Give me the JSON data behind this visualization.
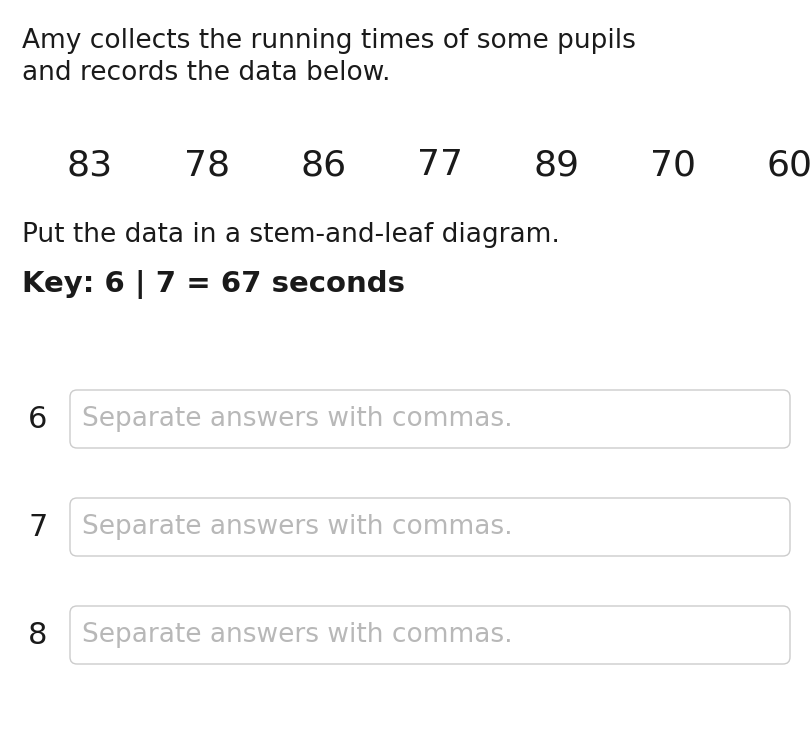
{
  "title_line1": "Amy collects the running times of some pupils",
  "title_line2": "and records the data below.",
  "data_values": [
    "83",
    "78",
    "86",
    "77",
    "89",
    "70",
    "60"
  ],
  "instruction": "Put the data in a stem-and-leaf diagram.",
  "key_text_bold": "Key: 6 | 7 = 67 seconds",
  "stems": [
    "6",
    "7",
    "8"
  ],
  "placeholder": "Separate answers with commas.",
  "bg_color": "#ffffff",
  "text_color": "#1a1a1a",
  "placeholder_color": "#b8b8b8",
  "box_border_color": "#cccccc",
  "title_fontsize": 19,
  "data_fontsize": 26,
  "instruction_fontsize": 19,
  "key_fontsize": 21,
  "stem_fontsize": 22,
  "placeholder_fontsize": 19
}
